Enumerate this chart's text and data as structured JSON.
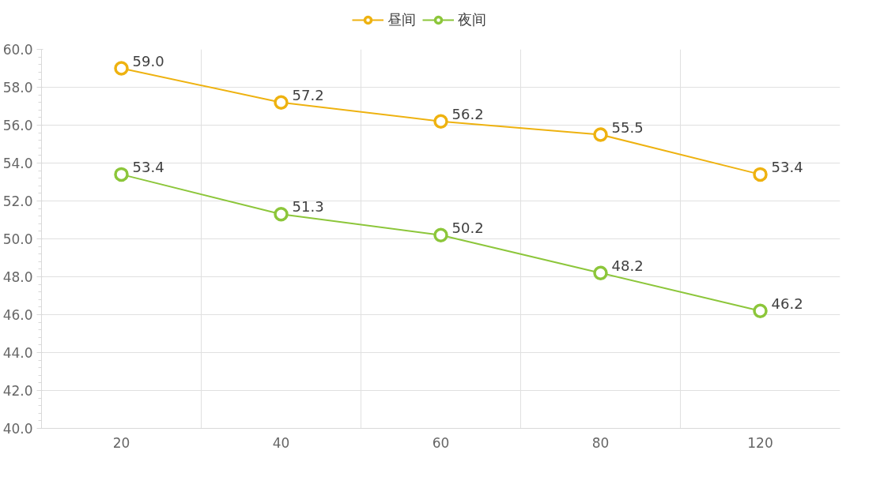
{
  "chart_data": {
    "type": "line",
    "categories": [
      "20",
      "40",
      "60",
      "80",
      "120"
    ],
    "series": [
      {
        "name": "昼间",
        "color": "#eeb210",
        "values": [
          59.0,
          57.2,
          56.2,
          55.5,
          53.4
        ],
        "value_labels": [
          "59.0",
          "57.2",
          "56.2",
          "55.5",
          "53.4"
        ]
      },
      {
        "name": "夜间",
        "color": "#8cc63a",
        "values": [
          53.4,
          51.3,
          50.2,
          48.2,
          46.2
        ],
        "value_labels": [
          "53.4",
          "51.3",
          "50.2",
          "48.2",
          "46.2"
        ]
      }
    ],
    "ylim": [
      40,
      60
    ],
    "yticks": [
      {
        "value": 40,
        "label": "40.0"
      },
      {
        "value": 42,
        "label": "42.0"
      },
      {
        "value": 44,
        "label": "44.0"
      },
      {
        "value": 46,
        "label": "46.0"
      },
      {
        "value": 48,
        "label": "48.0"
      },
      {
        "value": 50,
        "label": "50.0"
      },
      {
        "value": 52,
        "label": "52.0"
      },
      {
        "value": 54,
        "label": "54.0"
      },
      {
        "value": 56,
        "label": "56.0"
      },
      {
        "value": 58,
        "label": "58.0"
      },
      {
        "value": 60,
        "label": "60.0"
      }
    ],
    "grid": true,
    "legend": "top",
    "marker": "circle",
    "line_style": "solid",
    "data_labels": true
  }
}
